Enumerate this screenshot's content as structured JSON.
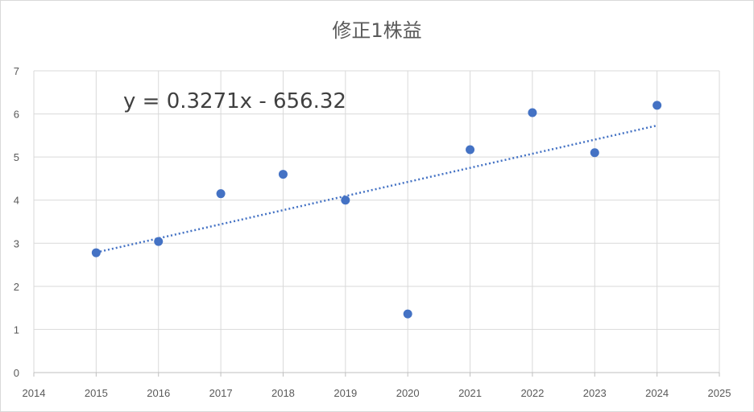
{
  "chart_data": {
    "type": "scatter",
    "title": "修正1株益",
    "xlabel": "",
    "ylabel": "",
    "x": [
      2015,
      2016,
      2017,
      2018,
      2019,
      2020,
      2021,
      2022,
      2023,
      2024
    ],
    "y": [
      2.78,
      3.04,
      4.15,
      4.6,
      4.0,
      1.36,
      5.17,
      6.03,
      5.1,
      6.2
    ],
    "xlim": [
      2014,
      2025
    ],
    "ylim": [
      0,
      7
    ],
    "x_ticks": [
      2014,
      2015,
      2016,
      2017,
      2018,
      2019,
      2020,
      2021,
      2022,
      2023,
      2024,
      2025
    ],
    "y_ticks": [
      0,
      1,
      2,
      3,
      4,
      5,
      6,
      7
    ],
    "grid": "vertical and horizontal",
    "legend": "none",
    "trendline": {
      "type": "linear",
      "slope": 0.3271,
      "intercept": -656.32,
      "label": "y = 0.3271x - 656.32",
      "x_range": [
        2015,
        2024
      ],
      "style": "dotted"
    },
    "colors": {
      "marker": "#4472c4",
      "trendline": "#4472c4",
      "grid": "#d9d9d9"
    }
  }
}
